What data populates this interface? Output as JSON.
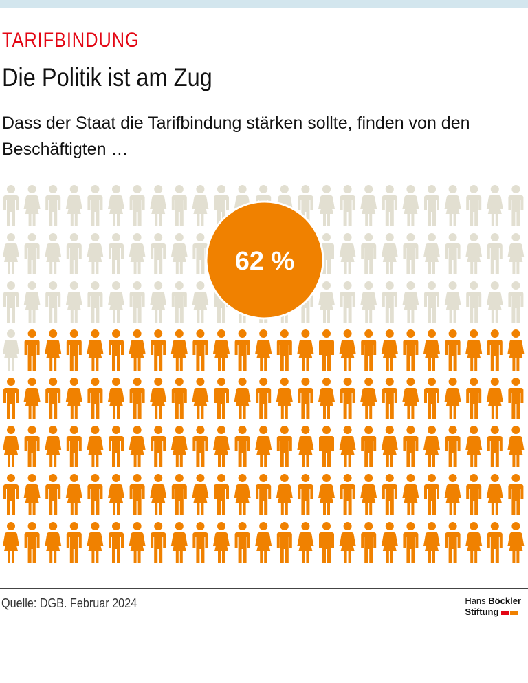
{
  "chart_data": {
    "type": "pictograph",
    "title": "TARIFBINDUNG",
    "subtitle": "Die Politik ist am Zug",
    "description": "Dass der Staat die Tarifbindung stärken sollte, finden von den Beschäftigten …",
    "value": 62,
    "value_label": "62 %",
    "ylim": [
      0,
      100
    ],
    "color": "#f08100",
    "empty_color": "#e2dfd1",
    "source": "Quelle: DGB. Februar 2024",
    "logo": [
      "Hans",
      "Böckler",
      "Stiftung"
    ]
  }
}
